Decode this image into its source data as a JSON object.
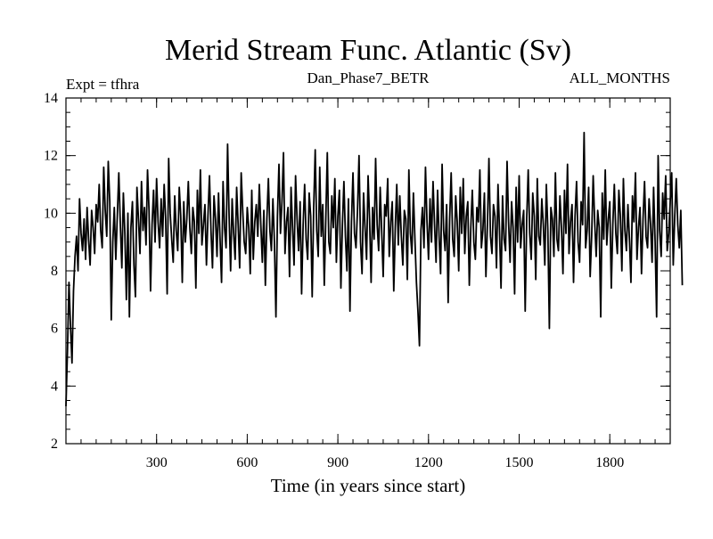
{
  "chart_data": {
    "type": "line",
    "title": "Merid Stream Func. Atlantic (Sv)",
    "subtitle_left": "Expt = tfhra",
    "subtitle_center": "Dan_Phase7_BETR",
    "subtitle_right": "ALL_MONTHS",
    "xlabel": "Time (in years since start)",
    "ylabel": "",
    "xlim": [
      0,
      2000
    ],
    "ylim": [
      2,
      14
    ],
    "x_major_ticks": [
      300,
      600,
      900,
      1200,
      1500,
      1800
    ],
    "x_minor_step": 50,
    "y_major_ticks": [
      2,
      4,
      6,
      8,
      10,
      12,
      14
    ],
    "y_minor_step": 0.5,
    "series": [
      {
        "name": "Merid Stream Func. Atlantic",
        "x_start": 0,
        "x_step": 5,
        "color": "#000000",
        "values": [
          3.3,
          5.2,
          7.6,
          6.1,
          4.8,
          7.3,
          8.5,
          9.2,
          8.0,
          10.5,
          9.3,
          8.7,
          9.8,
          8.4,
          10.2,
          9.1,
          8.2,
          10.1,
          9.5,
          8.6,
          10.3,
          9.7,
          11.0,
          9.4,
          8.8,
          11.6,
          10.1,
          9.2,
          11.8,
          10.4,
          6.3,
          9.0,
          10.2,
          8.4,
          9.9,
          11.4,
          9.6,
          8.1,
          10.7,
          9.3,
          7.0,
          10.0,
          6.4,
          9.5,
          10.4,
          8.2,
          7.1,
          10.9,
          9.8,
          8.6,
          11.1,
          9.4,
          10.2,
          8.9,
          11.5,
          10.1,
          7.3,
          9.6,
          10.8,
          9.0,
          11.2,
          9.7,
          8.8,
          10.5,
          9.2,
          11.0,
          9.8,
          7.2,
          11.9,
          10.0,
          9.1,
          8.3,
          10.6,
          9.4,
          8.7,
          10.9,
          9.9,
          7.6,
          10.4,
          9.0,
          9.8,
          11.1,
          9.5,
          8.6,
          10.2,
          9.7,
          7.4,
          10.8,
          9.3,
          11.5,
          8.9,
          9.6,
          10.3,
          8.2,
          9.9,
          11.3,
          9.4,
          8.1,
          10.6,
          9.8,
          8.5,
          10.7,
          9.1,
          7.6,
          11.1,
          9.5,
          8.8,
          12.4,
          9.9,
          8.0,
          10.5,
          9.3,
          8.4,
          10.9,
          9.6,
          8.1,
          11.4,
          10.1,
          9.0,
          8.6,
          10.2,
          9.5,
          7.9,
          10.8,
          8.4,
          9.7,
          10.3,
          9.2,
          11.0,
          9.6,
          8.3,
          10.1,
          7.5,
          9.8,
          11.2,
          9.4,
          8.7,
          10.5,
          9.0,
          6.4,
          9.9,
          11.7,
          9.3,
          10.4,
          12.1,
          8.6,
          9.7,
          10.2,
          7.8,
          10.9,
          9.5,
          8.2,
          11.3,
          9.8,
          8.7,
          10.4,
          7.2,
          9.6,
          11.0,
          9.1,
          8.4,
          10.7,
          9.9,
          7.1,
          10.2,
          12.2,
          9.4,
          8.5,
          11.6,
          9.2,
          10.3,
          7.5,
          9.8,
          12.1,
          9.0,
          8.6,
          10.6,
          9.5,
          11.2,
          8.3,
          9.9,
          10.8,
          7.4,
          9.6,
          11.1,
          9.2,
          8.0,
          10.5,
          6.6,
          9.7,
          11.4,
          9.3,
          8.8,
          10.1,
          12.0,
          9.0,
          7.9,
          10.7,
          9.5,
          8.4,
          11.3,
          9.8,
          7.6,
          10.2,
          9.1,
          11.9,
          9.6,
          8.7,
          10.9,
          9.4,
          7.8,
          10.3,
          9.9,
          11.2,
          8.5,
          9.7,
          10.4,
          7.3,
          9.5,
          11.0,
          8.9,
          10.6,
          9.2,
          8.2,
          10.1,
          9.8,
          7.7,
          11.5,
          9.3,
          8.6,
          10.7,
          9.1,
          7.6,
          6.6,
          5.4,
          9.4,
          10.2,
          8.8,
          11.6,
          9.7,
          8.4,
          10.5,
          9.0,
          11.1,
          9.6,
          8.3,
          10.8,
          9.2,
          7.9,
          11.7,
          9.4,
          8.7,
          10.3,
          6.9,
          9.8,
          11.4,
          9.1,
          8.5,
          10.6,
          9.7,
          8.0,
          10.9,
          9.3,
          11.2,
          8.6,
          9.9,
          10.4,
          7.5,
          9.5,
          10.8,
          9.0,
          8.4,
          10.2,
          9.7,
          11.5,
          8.8,
          9.4,
          10.7,
          7.8,
          9.6,
          11.9,
          9.2,
          8.6,
          10.3,
          9.9,
          8.1,
          11.0,
          9.4,
          7.4,
          10.6,
          9.1,
          8.7,
          11.8,
          9.7,
          8.3,
          10.4,
          9.5,
          7.2,
          10.9,
          9.0,
          11.3,
          8.8,
          9.6,
          10.1,
          6.6,
          9.8,
          11.5,
          9.3,
          8.4,
          10.7,
          9.9,
          7.7,
          11.2,
          9.2,
          8.9,
          10.5,
          9.6,
          8.2,
          11.0,
          9.4,
          6.0,
          10.2,
          9.8,
          8.5,
          11.4,
          9.1,
          8.7,
          10.6,
          9.5,
          7.9,
          10.8,
          9.3,
          11.7,
          8.6,
          9.7,
          10.3,
          7.6,
          9.9,
          11.1,
          9.0,
          8.3,
          10.4,
          9.6,
          12.8,
          8.8,
          9.4,
          10.9,
          7.8,
          9.2,
          11.3,
          9.7,
          8.5,
          10.1,
          9.5,
          6.4,
          10.7,
          9.1,
          11.5,
          8.9,
          9.8,
          10.4,
          7.4,
          9.6,
          11.0,
          9.3,
          8.6,
          10.8,
          9.9,
          8.0,
          11.2,
          9.4,
          8.7,
          10.3,
          9.1,
          7.6,
          10.6,
          9.7,
          11.4,
          8.4,
          9.5,
          10.2,
          7.9,
          9.8,
          11.1,
          9.2,
          8.8,
          10.5,
          9.6,
          8.3,
          10.9,
          9.0,
          6.4,
          12.0,
          9.4,
          8.5,
          10.7,
          9.8,
          11.3,
          8.7,
          9.3,
          10.4,
          11.4,
          8.2,
          9.9,
          11.2,
          9.6,
          8.8,
          10.1,
          7.5
        ]
      }
    ]
  }
}
